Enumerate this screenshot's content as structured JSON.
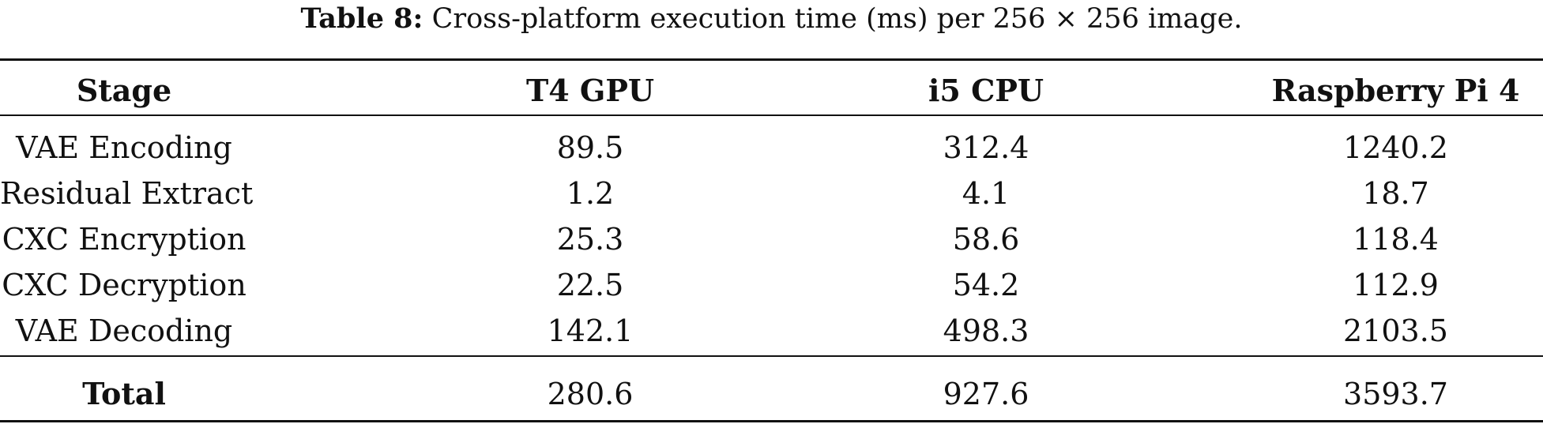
{
  "caption": {
    "label": "Table 8:",
    "text": "Cross-platform execution time (ms) per 256 × 256 image."
  },
  "table": {
    "headers": [
      "Stage",
      "T4 GPU",
      "i5 CPU",
      "Raspberry Pi 4"
    ],
    "rows": [
      [
        "VAE Encoding",
        "89.5",
        "312.4",
        "1240.2"
      ],
      [
        "Residual Extract",
        "1.2",
        "4.1",
        "18.7"
      ],
      [
        "CXC Encryption",
        "25.3",
        "58.6",
        "118.4"
      ],
      [
        "CXC Decryption",
        "22.5",
        "54.2",
        "112.9"
      ],
      [
        "VAE Decoding",
        "142.1",
        "498.3",
        "2103.5"
      ]
    ],
    "total": [
      "Total",
      "280.6",
      "927.6",
      "3593.7"
    ]
  }
}
